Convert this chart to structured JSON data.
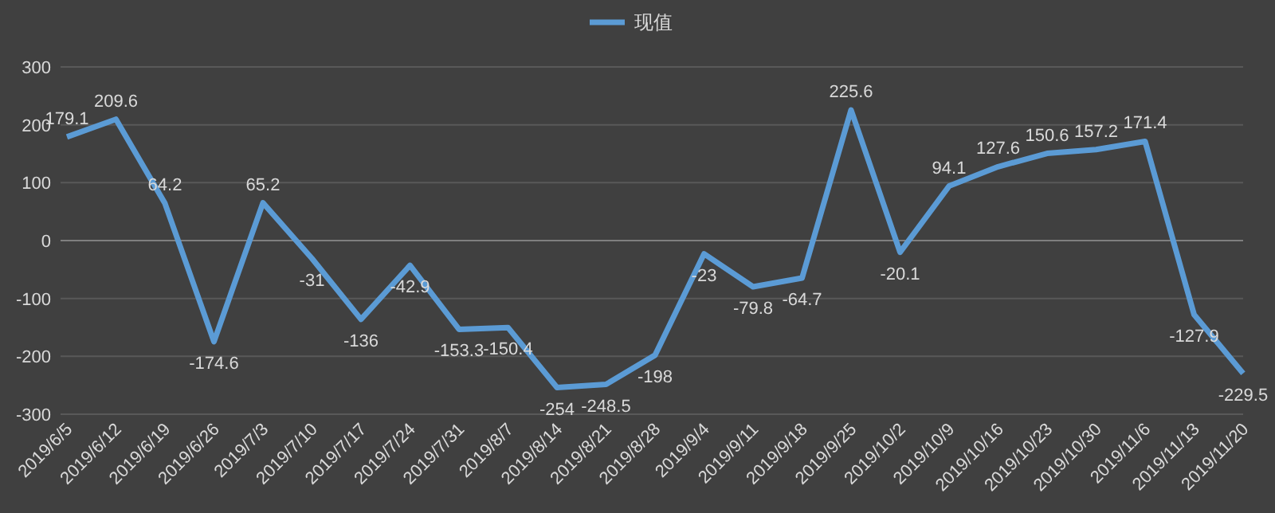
{
  "chart_data": {
    "type": "line",
    "categories": [
      "2019/6/5",
      "2019/6/12",
      "2019/6/19",
      "2019/6/26",
      "2019/7/3",
      "2019/7/10",
      "2019/7/17",
      "2019/7/24",
      "2019/7/31",
      "2019/8/7",
      "2019/8/14",
      "2019/8/21",
      "2019/8/28",
      "2019/9/4",
      "2019/9/11",
      "2019/9/18",
      "2019/9/25",
      "2019/10/2",
      "2019/10/9",
      "2019/10/16",
      "2019/10/23",
      "2019/10/30",
      "2019/11/6",
      "2019/11/13",
      "2019/11/20"
    ],
    "series": [
      {
        "name": "现值",
        "color": "#5b9bd5",
        "values": [
          179.1,
          209.6,
          64.2,
          -174.6,
          65.2,
          -31,
          -136,
          -42.9,
          -153.3,
          -150.4,
          -254,
          -248.5,
          -198,
          -23,
          -79.8,
          -64.7,
          225.6,
          -20.1,
          94.1,
          127.6,
          150.6,
          157.2,
          171.4,
          -127.9,
          -229.5
        ]
      }
    ],
    "ylim": [
      -300,
      300
    ],
    "yticks": [
      -300,
      -200,
      -100,
      0,
      100,
      200,
      300
    ],
    "grid": "y",
    "legend": "top",
    "data_labels": true,
    "marker": "none",
    "line_style": "solid"
  }
}
